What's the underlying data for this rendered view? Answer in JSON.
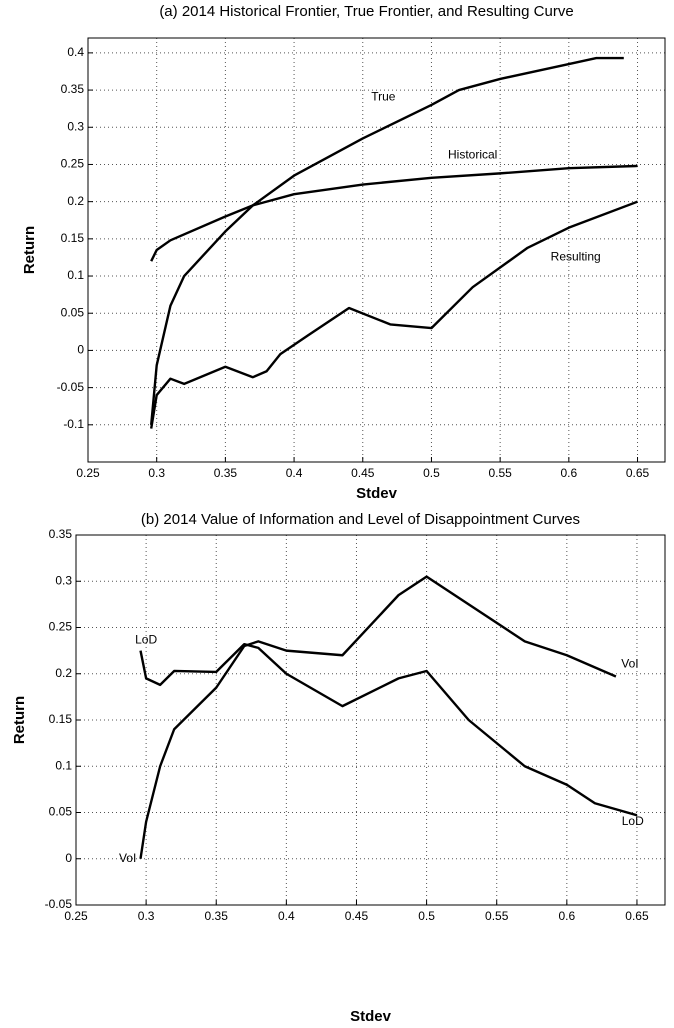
{
  "chart_data": [
    {
      "type": "line",
      "title": "(a) 2014 Historical Frontier, True Frontier, and Resulting Curve",
      "x_label": "Stdev",
      "y_label": "Return",
      "xlim": [
        0.25,
        0.67
      ],
      "xticks": [
        0.25,
        0.3,
        0.35,
        0.4,
        0.45,
        0.5,
        0.55,
        0.6,
        0.65
      ],
      "ylim": [
        -0.15,
        0.42
      ],
      "yticks": [
        -0.1,
        -0.05,
        0,
        0.05,
        0.1,
        0.15,
        0.2,
        0.25,
        0.3,
        0.35,
        0.4
      ],
      "grid": true,
      "annotations": [
        "True",
        "Historical",
        "Resulting"
      ],
      "series": [
        {
          "name": "True",
          "color": "#000000",
          "x": [
            0.296,
            0.3,
            0.31,
            0.32,
            0.35,
            0.37,
            0.4,
            0.45,
            0.5,
            0.52,
            0.55,
            0.6,
            0.62,
            0.64
          ],
          "values": [
            -0.1,
            -0.02,
            0.06,
            0.1,
            0.16,
            0.195,
            0.235,
            0.285,
            0.33,
            0.35,
            0.365,
            0.385,
            0.393,
            0.393
          ]
        },
        {
          "name": "Historical",
          "color": "#000000",
          "x": [
            0.296,
            0.3,
            0.31,
            0.35,
            0.37,
            0.4,
            0.45,
            0.5,
            0.55,
            0.6,
            0.65
          ],
          "values": [
            0.12,
            0.135,
            0.148,
            0.18,
            0.195,
            0.21,
            0.223,
            0.232,
            0.238,
            0.245,
            0.248
          ]
        },
        {
          "name": "Resulting",
          "color": "#000000",
          "x": [
            0.296,
            0.3,
            0.31,
            0.32,
            0.35,
            0.37,
            0.38,
            0.39,
            0.41,
            0.44,
            0.47,
            0.5,
            0.53,
            0.57,
            0.6,
            0.65
          ],
          "values": [
            -0.105,
            -0.06,
            -0.038,
            -0.045,
            -0.022,
            -0.036,
            -0.028,
            -0.005,
            0.02,
            0.057,
            0.035,
            0.03,
            0.085,
            0.138,
            0.165,
            0.2
          ]
        }
      ]
    },
    {
      "type": "line",
      "title": "(b) 2014 Value of Information and Level of Disappointment Curves",
      "x_label": "Stdev",
      "y_label": "Return",
      "xlim": [
        0.25,
        0.67
      ],
      "xticks": [
        0.25,
        0.3,
        0.35,
        0.4,
        0.45,
        0.5,
        0.55,
        0.6,
        0.65
      ],
      "ylim": [
        -0.05,
        0.35
      ],
      "yticks": [
        -0.05,
        0,
        0.05,
        0.1,
        0.15,
        0.2,
        0.25,
        0.3,
        0.35
      ],
      "grid": true,
      "annotations": [
        "LoD",
        "VoI",
        "VoI",
        "LoD"
      ],
      "series": [
        {
          "name": "VoI",
          "color": "#000000",
          "x": [
            0.296,
            0.3,
            0.31,
            0.32,
            0.35,
            0.37,
            0.38,
            0.4,
            0.44,
            0.48,
            0.5,
            0.57,
            0.6,
            0.635
          ],
          "values": [
            0.0,
            0.04,
            0.1,
            0.14,
            0.185,
            0.23,
            0.235,
            0.225,
            0.22,
            0.285,
            0.305,
            0.235,
            0.22,
            0.197
          ]
        },
        {
          "name": "LoD",
          "color": "#000000",
          "x": [
            0.296,
            0.3,
            0.31,
            0.32,
            0.35,
            0.37,
            0.38,
            0.4,
            0.44,
            0.48,
            0.5,
            0.53,
            0.57,
            0.6,
            0.62,
            0.65
          ],
          "values": [
            0.225,
            0.195,
            0.188,
            0.203,
            0.202,
            0.232,
            0.228,
            0.2,
            0.165,
            0.195,
            0.203,
            0.15,
            0.1,
            0.08,
            0.06,
            0.047
          ]
        }
      ]
    }
  ]
}
